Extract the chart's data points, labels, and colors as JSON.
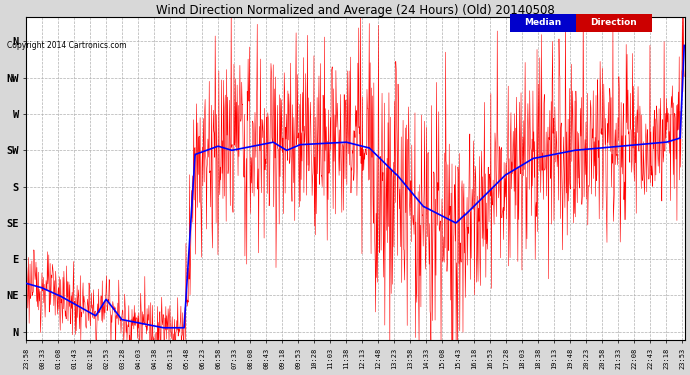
{
  "title": "Wind Direction Normalized and Average (24 Hours) (Old) 20140508",
  "copyright": "Copyright 2014 Cartronics.com",
  "background_color": "#d8d8d8",
  "plot_bg_color": "#ffffff",
  "yticks_labels": [
    "N",
    "NW",
    "W",
    "SW",
    "S",
    "SE",
    "E",
    "NE",
    "N"
  ],
  "yticks_values": [
    360,
    315,
    270,
    225,
    180,
    135,
    90,
    45,
    0
  ],
  "ylim": [
    -10,
    390
  ],
  "grid_color": "#b0b0b0",
  "line_color_red": "#ff0000",
  "line_color_blue": "#0000ff",
  "legend_median_bg": "#0000cc",
  "legend_direction_bg": "#cc0000",
  "figwidth": 6.9,
  "figheight": 3.75,
  "dpi": 100
}
